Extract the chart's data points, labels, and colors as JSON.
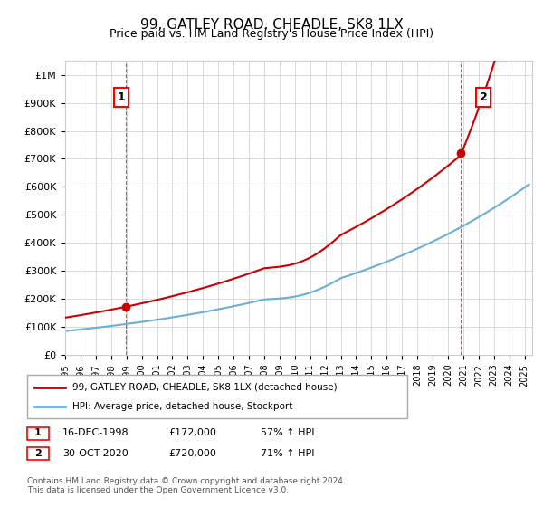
{
  "title": "99, GATLEY ROAD, CHEADLE, SK8 1LX",
  "subtitle": "Price paid vs. HM Land Registry's House Price Index (HPI)",
  "ylabel_ticks": [
    "£0",
    "£100K",
    "£200K",
    "£300K",
    "£400K",
    "£500K",
    "£600K",
    "£700K",
    "£800K",
    "£900K",
    "£1M"
  ],
  "ytick_values": [
    0,
    100000,
    200000,
    300000,
    400000,
    500000,
    600000,
    700000,
    800000,
    900000,
    1000000
  ],
  "ylim": [
    0,
    1050000
  ],
  "xlim_start": 1995.0,
  "xlim_end": 2025.5,
  "hpi_color": "#6baed6",
  "price_color": "#cc0000",
  "sale1_date": 1998.96,
  "sale1_price": 172000,
  "sale2_date": 2020.83,
  "sale2_price": 720000,
  "legend_line1": "99, GATLEY ROAD, CHEADLE, SK8 1LX (detached house)",
  "legend_line2": "HPI: Average price, detached house, Stockport",
  "annotation1_label": "1",
  "annotation2_label": "2",
  "table_row1": [
    "1",
    "16-DEC-1998",
    "£172,000",
    "57% ↑ HPI"
  ],
  "table_row2": [
    "2",
    "30-OCT-2020",
    "£720,000",
    "71% ↑ HPI"
  ],
  "footer": "Contains HM Land Registry data © Crown copyright and database right 2024.\nThis data is licensed under the Open Government Licence v3.0.",
  "background_color": "#ffffff"
}
